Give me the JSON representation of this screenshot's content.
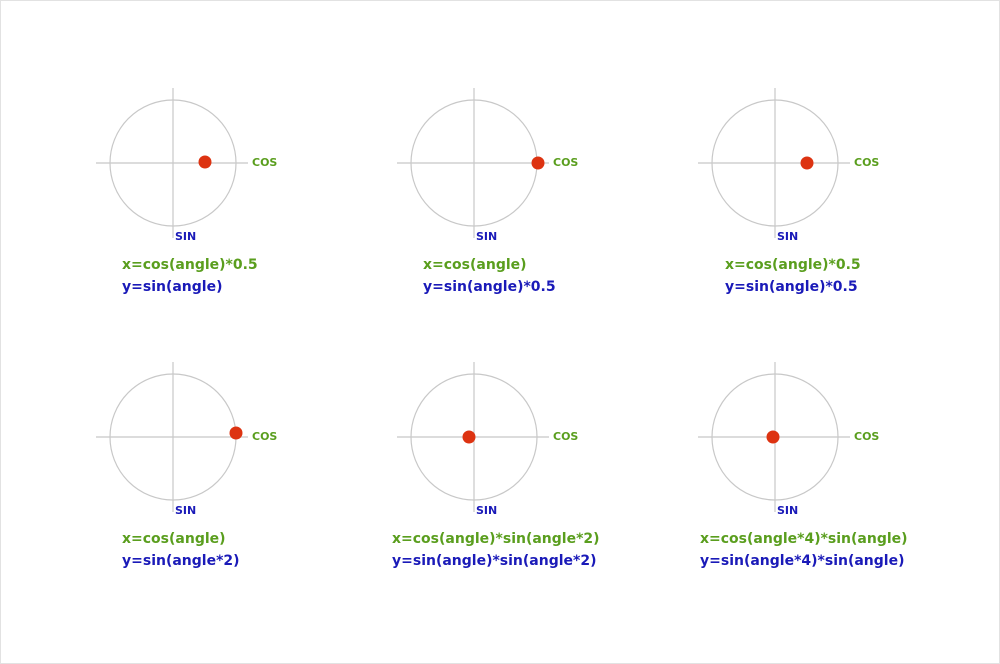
{
  "axis_labels": {
    "cos": "COS",
    "sin": "SIN"
  },
  "panels": [
    {
      "x_formula": "x=cos(angle)*0.5",
      "y_formula": "y=sin(angle)"
    },
    {
      "x_formula": "x=cos(angle)",
      "y_formula": "y=sin(angle)*0.5"
    },
    {
      "x_formula": "x=cos(angle)*0.5",
      "y_formula": "y=sin(angle)*0.5"
    },
    {
      "x_formula": "x=cos(angle)",
      "y_formula": "y=sin(angle*2)"
    },
    {
      "x_formula": "x=cos(angle)*sin(angle*2)",
      "y_formula": "y=sin(angle)*sin(angle*2)"
    },
    {
      "x_formula": "x=cos(angle*4)*sin(angle)",
      "y_formula": "y=sin(angle*4)*sin(angle)"
    }
  ]
}
